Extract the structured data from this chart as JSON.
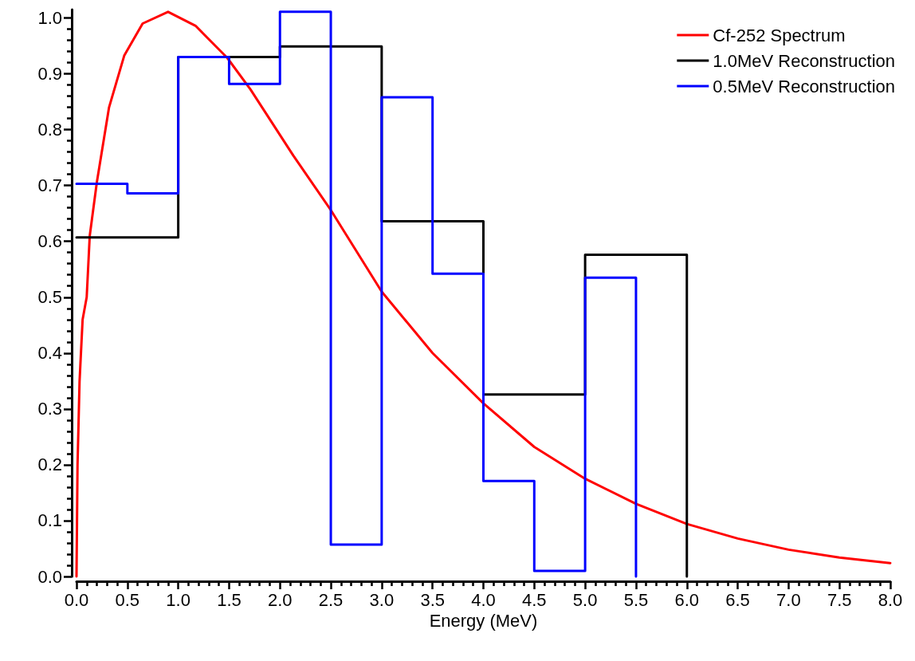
{
  "chart_data": {
    "type": "line",
    "xlabel": "Energy (MeV)",
    "series": [
      {
        "name": "Cf-252 Spectrum",
        "color": "#ff0000",
        "x": [
          0,
          0.01,
          0.03,
          0.06,
          0.1,
          0.13,
          0.2,
          0.32,
          0.47,
          0.65,
          0.9,
          1.17,
          1.48,
          1.71,
          2.13,
          2.5,
          3,
          3.5,
          4,
          4.5,
          5,
          5.5,
          6,
          6.5,
          7,
          7.5,
          8
        ],
        "values": [
          0,
          0.2,
          0.35,
          0.46,
          0.5,
          0.61,
          0.706,
          0.84,
          0.933,
          0.99,
          1.011,
          0.986,
          0.929,
          0.872,
          0.754,
          0.656,
          0.51,
          0.4,
          0.31,
          0.232,
          0.175,
          0.13,
          0.094,
          0.068,
          0.048,
          0.034,
          0.024
        ]
      },
      {
        "name": "1.0MeV Reconstruction",
        "type": "step",
        "color": "#000000",
        "x": [
          0,
          1,
          2,
          3,
          4,
          5,
          6
        ],
        "values": [
          0.607,
          0.93,
          0.949,
          0.636,
          0.326,
          0.576,
          0
        ]
      },
      {
        "name": "0.5MeV Reconstruction",
        "type": "step",
        "color": "#0000ff",
        "x": [
          0,
          0.5,
          1,
          1.5,
          2,
          2.5,
          3,
          3.5,
          4,
          4.5,
          5,
          5.5
        ],
        "values": [
          0.703,
          0.686,
          0.93,
          0.882,
          1.011,
          0.057,
          0.858,
          0.542,
          0.171,
          0.01,
          0.535,
          0
        ]
      }
    ],
    "xlim": [
      0,
      8
    ],
    "xticks": [
      {
        "value": 0,
        "label": "0.0"
      },
      0.5,
      {
        "value": 1,
        "label": "1.0"
      },
      1.5,
      {
        "value": 2,
        "label": "2.0"
      },
      2.5,
      {
        "value": 3,
        "label": "3.0"
      },
      3.5,
      {
        "value": 4,
        "label": "4.0"
      },
      4.5,
      {
        "value": 5,
        "label": "5.0"
      },
      5.5,
      {
        "value": 6,
        "label": "6.0"
      },
      6.5,
      {
        "value": 7,
        "label": "7.0"
      },
      7.5,
      {
        "value": 8,
        "label": "8.0"
      }
    ],
    "ylim": [
      0,
      1.015
    ],
    "yticks": [
      {
        "value": 0,
        "label": "0.0"
      },
      0.1,
      0.2,
      0.3,
      0.4,
      0.5,
      0.6,
      0.7,
      0.8,
      0.9,
      {
        "value": 1,
        "label": "1.0"
      }
    ],
    "grid": false,
    "legend": "top right",
    "marker": "none",
    "line_style": "solid"
  }
}
